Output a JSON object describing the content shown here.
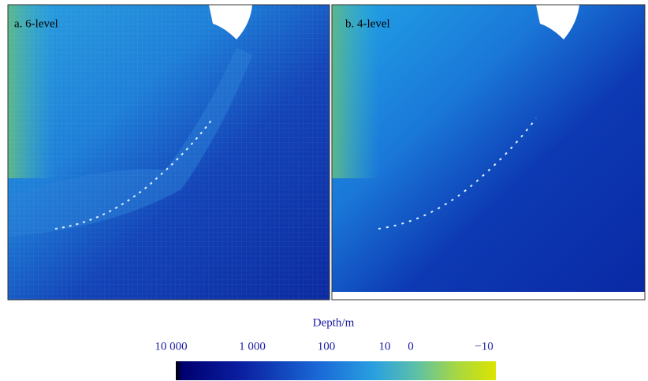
{
  "panels": [
    {
      "label": "a. 6-level"
    },
    {
      "label": "b. 4-level"
    }
  ],
  "colorbar": {
    "title": "Depth/m",
    "ticks": [
      "10 000",
      "1 000",
      "100",
      "10",
      "0",
      "−10"
    ]
  }
}
